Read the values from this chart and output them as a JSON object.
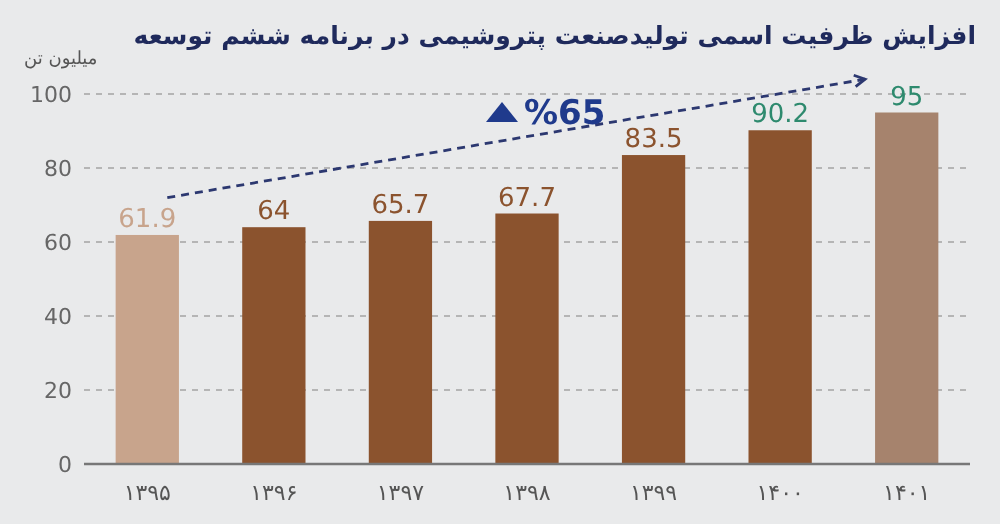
{
  "chart_data": {
    "type": "bar",
    "title": "افزایش ظرفیت اسمی تولیدصنعت پتروشیمی در برنامه ششم توسعه",
    "ylabel": "میلیون تن",
    "categories": [
      "۱۳۹۵",
      "۱۳۹۶",
      "۱۳۹۷",
      "۱۳۹۸",
      "۱۳۹۹",
      "۱۴۰۰",
      "۱۴۰۱"
    ],
    "values": [
      61.9,
      64,
      65.7,
      67.7,
      83.5,
      90.2,
      95
    ],
    "colors": [
      "#c8a48c",
      "#8b532e",
      "#8b532e",
      "#8b532e",
      "#8b532e",
      "#8b532e",
      "#a6836d"
    ],
    "ylim": [
      0,
      100
    ],
    "yticks": [
      0,
      20,
      40,
      60,
      80,
      100
    ],
    "grid": "y",
    "data_labels": true,
    "annotations": [
      "%65"
    ]
  }
}
